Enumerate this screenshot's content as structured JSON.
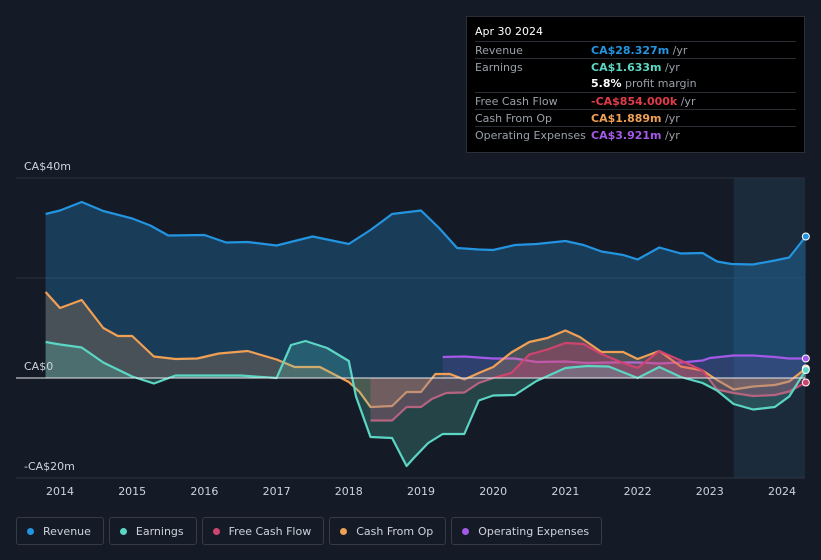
{
  "tooltip": {
    "date": "Apr 30 2024",
    "rows": [
      {
        "label": "Revenue",
        "value": "CA$28.327m",
        "unit": " /yr",
        "color": "#2394df"
      },
      {
        "label": "Earnings",
        "value": "CA$1.633m",
        "unit": " /yr",
        "color": "#5cd6c4"
      },
      {
        "label": "",
        "value": "5.8%",
        "unit": " profit margin",
        "color": "#ffffff"
      },
      {
        "label": "Free Cash Flow",
        "value": "-CA$854.000k",
        "unit": " /yr",
        "color": "#e03c4a"
      },
      {
        "label": "Cash From Op",
        "value": "CA$1.889m",
        "unit": " /yr",
        "color": "#f0a055"
      },
      {
        "label": "Operating Expenses",
        "value": "CA$3.921m",
        "unit": " /yr",
        "color": "#a559e8"
      }
    ]
  },
  "legend": [
    {
      "label": "Revenue",
      "color": "#2394df"
    },
    {
      "label": "Earnings",
      "color": "#5cd6c4"
    },
    {
      "label": "Free Cash Flow",
      "color": "#d0436e"
    },
    {
      "label": "Cash From Op",
      "color": "#f0a055"
    },
    {
      "label": "Operating Expenses",
      "color": "#a559e8"
    }
  ],
  "chart_data": {
    "type": "area",
    "title": "",
    "y_unit": "CA$m",
    "ylim": [
      -20,
      40
    ],
    "xlim": [
      2013.8,
      2024.33
    ],
    "y_tick_labels": [
      {
        "value": 40,
        "label": "CA$40m"
      },
      {
        "value": 0,
        "label": "CA$0"
      },
      {
        "value": -20,
        "label": "-CA$20m"
      }
    ],
    "x_tick_labels": [
      "2014",
      "2015",
      "2016",
      "2017",
      "2018",
      "2019",
      "2020",
      "2021",
      "2022",
      "2023",
      "2024"
    ],
    "highlight_start": 2023.33,
    "series": [
      {
        "name": "Revenue",
        "color": "#2394df",
        "fill": true,
        "x": [
          2013.8,
          2014.0,
          2014.3,
          2014.6,
          2015.0,
          2015.25,
          2015.5,
          2016.0,
          2016.3,
          2016.6,
          2017.0,
          2017.5,
          2018.0,
          2018.3,
          2018.6,
          2019.0,
          2019.25,
          2019.5,
          2019.8,
          2020.0,
          2020.3,
          2020.6,
          2021.0,
          2021.25,
          2021.5,
          2021.8,
          2022.0,
          2022.3,
          2022.6,
          2022.9,
          2023.1,
          2023.3,
          2023.6,
          2023.9,
          2024.1,
          2024.33
        ],
        "y": [
          32.8,
          33.5,
          35.2,
          33.4,
          31.9,
          30.5,
          28.5,
          28.6,
          27.1,
          27.2,
          26.5,
          28.3,
          26.8,
          29.6,
          32.8,
          33.5,
          30,
          26,
          25.7,
          25.6,
          26.6,
          26.8,
          27.4,
          26.6,
          25.3,
          24.6,
          23.7,
          26.1,
          24.9,
          25.0,
          23.3,
          22.8,
          22.7,
          23.5,
          24.1,
          28.3
        ]
      },
      {
        "name": "Earnings",
        "color": "#5cd6c4",
        "fill": true,
        "x": [
          2013.8,
          2014.0,
          2014.3,
          2014.6,
          2015.0,
          2015.3,
          2015.6,
          2016.0,
          2016.5,
          2017.0,
          2017.2,
          2017.4,
          2017.7,
          2018.0,
          2018.1,
          2018.3,
          2018.6,
          2018.8,
          2018.9,
          2019.1,
          2019.3,
          2019.6,
          2019.8,
          2020.0,
          2020.3,
          2020.6,
          2021.0,
          2021.3,
          2021.6,
          2022.0,
          2022.3,
          2022.6,
          2022.9,
          2023.1,
          2023.33,
          2023.6,
          2023.9,
          2024.1,
          2024.33
        ],
        "y": [
          7.2,
          6.7,
          6.1,
          3.1,
          0.3,
          -1.1,
          0.5,
          0.5,
          0.5,
          0,
          6.6,
          7.4,
          6.0,
          3.4,
          -3.7,
          -11.8,
          -12.0,
          -17.6,
          -16.0,
          -13.0,
          -11.2,
          -11.2,
          -4.5,
          -3.5,
          -3.4,
          -0.6,
          2.0,
          2.4,
          2.3,
          0,
          2.2,
          0.2,
          -1.0,
          -2.5,
          -5.2,
          -6.3,
          -5.8,
          -3.7,
          1.6
        ]
      },
      {
        "name": "Free Cash Flow",
        "color": "#d0436e",
        "fill": true,
        "x": [
          2018.3,
          2018.6,
          2018.8,
          2019.0,
          2019.15,
          2019.35,
          2019.6,
          2019.8,
          2020.0,
          2020.25,
          2020.5,
          2020.75,
          2021.0,
          2021.25,
          2021.5,
          2021.8,
          2022.0,
          2022.3,
          2022.6,
          2022.9,
          2023.1,
          2023.33,
          2023.6,
          2023.9,
          2024.1,
          2024.33
        ],
        "y": [
          -8.5,
          -8.5,
          -5.8,
          -5.8,
          -4.2,
          -3.0,
          -2.9,
          -1.0,
          0.0,
          1.0,
          4.7,
          5.7,
          7.0,
          6.8,
          4.8,
          3.0,
          2.0,
          5.4,
          3.5,
          1.5,
          -2.3,
          -3.0,
          -3.6,
          -3.4,
          -2.7,
          -0.9
        ]
      },
      {
        "name": "Cash From Op",
        "color": "#f0a055",
        "fill": true,
        "x": [
          2013.8,
          2014.0,
          2014.3,
          2014.6,
          2014.8,
          2015.0,
          2015.3,
          2015.6,
          2015.9,
          2016.2,
          2016.6,
          2017.0,
          2017.25,
          2017.6,
          2018.0,
          2018.15,
          2018.3,
          2018.6,
          2018.8,
          2019.0,
          2019.2,
          2019.4,
          2019.6,
          2019.8,
          2020.0,
          2020.25,
          2020.5,
          2020.75,
          2021.0,
          2021.2,
          2021.5,
          2021.8,
          2022.0,
          2022.3,
          2022.6,
          2022.9,
          2023.1,
          2023.33,
          2023.6,
          2023.9,
          2024.1,
          2024.33
        ],
        "y": [
          17.2,
          14.0,
          15.6,
          10.0,
          8.4,
          8.4,
          4.3,
          3.8,
          3.9,
          4.9,
          5.4,
          3.7,
          2.2,
          2.2,
          -0.8,
          -2.8,
          -5.8,
          -5.6,
          -2.8,
          -2.8,
          0.8,
          0.8,
          -0.3,
          1.0,
          2.2,
          5.1,
          7.2,
          8.0,
          9.5,
          8.2,
          5.2,
          5.2,
          3.8,
          5.4,
          2.3,
          1.5,
          -0.4,
          -2.3,
          -1.7,
          -1.4,
          -0.7,
          1.9
        ]
      },
      {
        "name": "Operating Expenses",
        "color": "#a559e8",
        "fill": true,
        "x": [
          2019.3,
          2019.6,
          2020.0,
          2020.3,
          2020.6,
          2021.0,
          2021.3,
          2021.6,
          2022.0,
          2022.3,
          2022.6,
          2022.9,
          2023.0,
          2023.33,
          2023.6,
          2023.9,
          2024.1,
          2024.33
        ],
        "y": [
          4.2,
          4.3,
          3.9,
          3.9,
          3.2,
          3.3,
          3.0,
          3.1,
          3.1,
          2.9,
          3.1,
          3.5,
          4.0,
          4.5,
          4.5,
          4.2,
          3.9,
          3.9
        ]
      }
    ]
  }
}
